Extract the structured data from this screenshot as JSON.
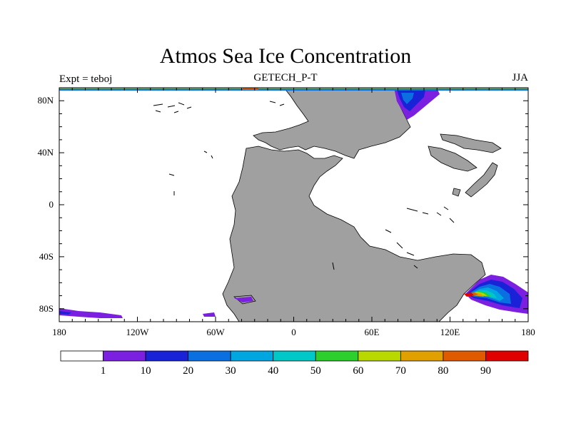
{
  "title": "Atmos Sea Ice Concentration",
  "subtitle": "GETECH_P-T",
  "left_label": "Expt = teboj",
  "right_label": "JJA",
  "chart_data": {
    "type": "filled contour map",
    "projection": "cylindrical equidistant",
    "lon_range": [
      -180,
      180
    ],
    "lat_range": [
      -90,
      90
    ],
    "x_ticks": [
      {
        "value": -180,
        "label": "180"
      },
      {
        "value": -120,
        "label": "120W"
      },
      {
        "value": -60,
        "label": "60W"
      },
      {
        "value": 0,
        "label": "0"
      },
      {
        "value": 60,
        "label": "60E"
      },
      {
        "value": 120,
        "label": "120E"
      },
      {
        "value": 180,
        "label": "180"
      }
    ],
    "y_ticks": [
      {
        "value": 80,
        "label": "80N"
      },
      {
        "value": 40,
        "label": "40N"
      },
      {
        "value": 0,
        "label": "0"
      },
      {
        "value": -40,
        "label": "40S"
      },
      {
        "value": -80,
        "label": "80S"
      }
    ],
    "colorbar": {
      "levels": [
        "1",
        "10",
        "20",
        "30",
        "40",
        "50",
        "60",
        "70",
        "80",
        "90"
      ],
      "colors": [
        "#ffffff",
        "#7b1fe0",
        "#1a22d8",
        "#0a6fe0",
        "#00a6e0",
        "#00c8c8",
        "#2ccf2c",
        "#b8d800",
        "#e0a000",
        "#e05a00",
        "#e00000"
      ]
    },
    "land_color": "#a0a0a0",
    "ocean_color": "#ffffff"
  }
}
